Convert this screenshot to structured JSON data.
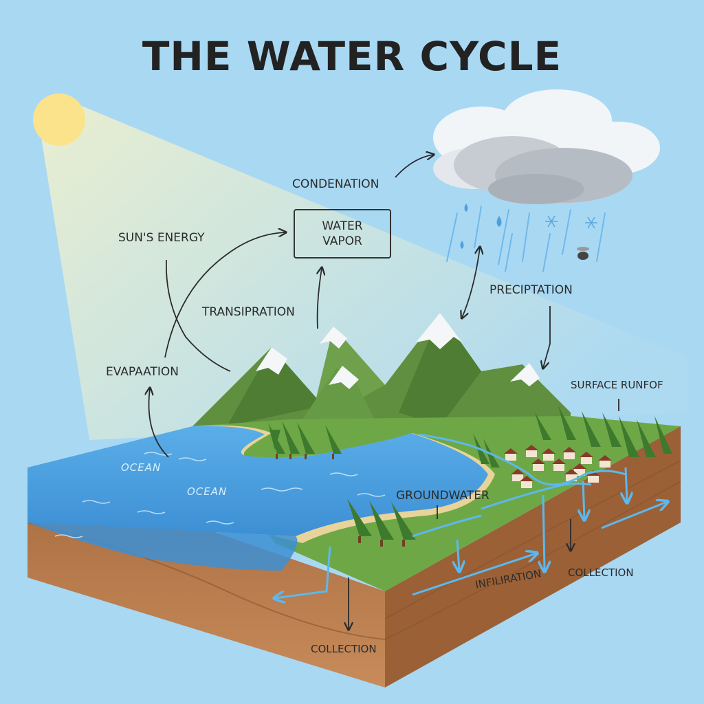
{
  "title": "THE WATER CYCLE",
  "labels": {
    "condenation": "CONDENATION",
    "water_vapor_line1": "WATER",
    "water_vapor_line2": "VAPOR",
    "suns_energy": "SUN'S ENERGY",
    "transpiration": "TRANSIPRATION",
    "evapaation": "EVAPAATION",
    "precipitation": "PRECIPTATION",
    "surface_runoff": "SURFACE RUNFOF",
    "groundwater": "GROUNDWATER",
    "infiliration": "INFILIRATION",
    "collection_right": "COLLECTION",
    "collection_bottom": "COLLECTION",
    "ocean_1": "OCEAN",
    "ocean_2": "OCEAN"
  },
  "colors": {
    "sky": "#a9d8f3",
    "sun": "#fbe38c",
    "ocean": "#4fa3e3",
    "grass": "#6ea846",
    "soil": "#b97a4e",
    "mountain": "#5f8f3f",
    "arrow": "#2b2b2b",
    "water_arrow": "#5cb8ee"
  },
  "icons": [
    "sun-icon",
    "cloud-icon",
    "raindrop-icon",
    "snowflake-icon",
    "tree-icon",
    "house-icon"
  ]
}
